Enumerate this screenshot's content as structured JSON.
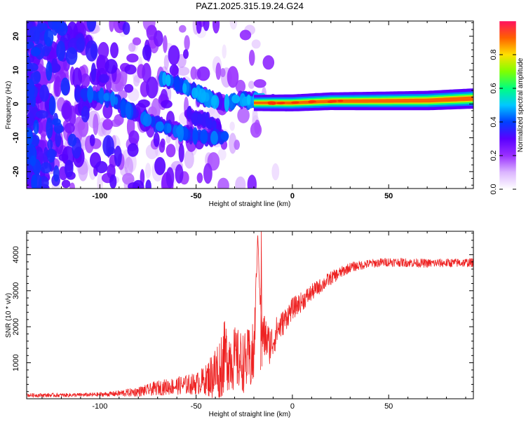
{
  "title": "PAZ1.2025.315.19.24.G24",
  "colors": {
    "snr_line": "#ee2222",
    "frame": "#000000",
    "background": "#ffffff"
  },
  "chart_data": [
    {
      "type": "heatmap",
      "panel": "top",
      "xlabel": "Height of straight line (km)",
      "ylabel": "Frequency (Hz)",
      "xlim": [
        -138,
        94
      ],
      "ylim": [
        -25,
        24.5
      ],
      "xticks": [
        -100,
        -50,
        0,
        50
      ],
      "xtick_labels": [
        "-100",
        "-50",
        "0",
        "50"
      ],
      "yticks": [
        -20,
        -10,
        0,
        10,
        20
      ],
      "ytick_labels": [
        "-20",
        "-10",
        "0",
        "10",
        "20"
      ],
      "colorbar": {
        "label": "Normalized spectral amplitude",
        "range": [
          0,
          1
        ],
        "ticks": [
          0.0,
          0.2,
          0.4,
          0.6,
          0.8
        ],
        "tick_labels": [
          "0.0",
          "0.2",
          "0.4",
          "0.6",
          "0.8"
        ],
        "colormap": [
          [
            0.0,
            "#ffffff"
          ],
          [
            0.1,
            "#dcb6ff"
          ],
          [
            0.2,
            "#9a30ff"
          ],
          [
            0.3,
            "#5a00ff"
          ],
          [
            0.4,
            "#0040ff"
          ],
          [
            0.5,
            "#00c8ff"
          ],
          [
            0.6,
            "#00ff80"
          ],
          [
            0.7,
            "#80ff00"
          ],
          [
            0.8,
            "#ffe000"
          ],
          [
            0.9,
            "#ff6000"
          ],
          [
            1.0,
            "#ff0000"
          ]
        ]
      },
      "features": {
        "carrier_start_km": -20,
        "carrier_ridge": [
          [
            -20,
            0.3
          ],
          [
            0,
            0.3
          ],
          [
            20,
            0.8
          ],
          [
            50,
            0.9
          ],
          [
            70,
            1.0
          ],
          [
            94,
            1.6
          ]
        ],
        "descending_branch": [
          [
            -112,
            3
          ],
          [
            -95,
            2
          ],
          [
            -85,
            -2
          ],
          [
            -70,
            -6
          ],
          [
            -55,
            -9
          ],
          [
            -45,
            -10
          ],
          [
            -35,
            -9.5
          ]
        ],
        "upper_branch": [
          [
            -68,
            7.5
          ],
          [
            -55,
            5
          ],
          [
            -45,
            2
          ],
          [
            -35,
            0
          ],
          [
            -25,
            1.5
          ],
          [
            -15,
            1
          ]
        ],
        "middle_branch": [
          [
            -55,
            -3
          ],
          [
            -45,
            -5
          ],
          [
            -38,
            -7
          ]
        ]
      }
    },
    {
      "type": "line",
      "panel": "bottom",
      "xlabel": "Height of straight line (km)",
      "ylabel": "SNR (10 * v/v)",
      "xlim": [
        -138,
        94
      ],
      "ylim": [
        0,
        4650
      ],
      "xticks": [
        -100,
        -50,
        0,
        50
      ],
      "xtick_labels": [
        "-100",
        "-50",
        "0",
        "50"
      ],
      "yticks": [
        1000,
        2000,
        3000,
        4000
      ],
      "ytick_labels": [
        "1000",
        "2000",
        "3000",
        "4000"
      ],
      "series": [
        {
          "name": "SNR",
          "x": [
            -138,
            -120,
            -105,
            -95,
            -85,
            -80,
            -75,
            -70,
            -60,
            -50,
            -45,
            -40,
            -37,
            -35,
            -30,
            -25,
            -20,
            -18,
            -16,
            -14,
            -12,
            -10,
            -8,
            -5,
            -2,
            0,
            5,
            10,
            15,
            20,
            25,
            30,
            40,
            50,
            60,
            70,
            80,
            94
          ],
          "mean": [
            100,
            100,
            110,
            130,
            170,
            200,
            240,
            300,
            360,
            420,
            520,
            700,
            1000,
            1200,
            1100,
            1000,
            1150,
            4600,
            1800,
            1700,
            1500,
            1600,
            1900,
            2100,
            2350,
            2500,
            2700,
            2950,
            3150,
            3350,
            3500,
            3650,
            3750,
            3800,
            3780,
            3760,
            3770,
            3780
          ],
          "noise": [
            40,
            40,
            40,
            50,
            80,
            100,
            120,
            150,
            180,
            220,
            300,
            600,
            750,
            700,
            650,
            600,
            700,
            0,
            500,
            450,
            400,
            350,
            300,
            260,
            230,
            220,
            200,
            170,
            150,
            140,
            120,
            100,
            90,
            90,
            90,
            90,
            90,
            90
          ]
        }
      ]
    }
  ]
}
